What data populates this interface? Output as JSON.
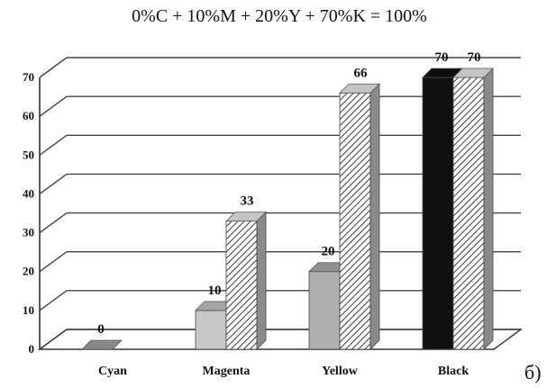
{
  "chart_data": {
    "type": "bar",
    "title": "0%C + 10%M + 20%Y + 70%K = 100%",
    "categories": [
      "Cyan",
      "Magenta",
      "Yellow",
      "Black"
    ],
    "series": [
      {
        "values": [
          0,
          10,
          20,
          70
        ],
        "colors": [
          "#a6a6a6",
          "#c8c8c8",
          "#b0b0b0",
          "#111111"
        ]
      },
      {
        "values": [
          0,
          33,
          66,
          70
        ],
        "pattern": "hatched"
      }
    ],
    "ylim": [
      0,
      70
    ],
    "yticks": [
      "0",
      "10",
      "20",
      "30",
      "40",
      "50",
      "60",
      "70"
    ],
    "grid": true,
    "legend": "none",
    "corner_label": "б)"
  }
}
